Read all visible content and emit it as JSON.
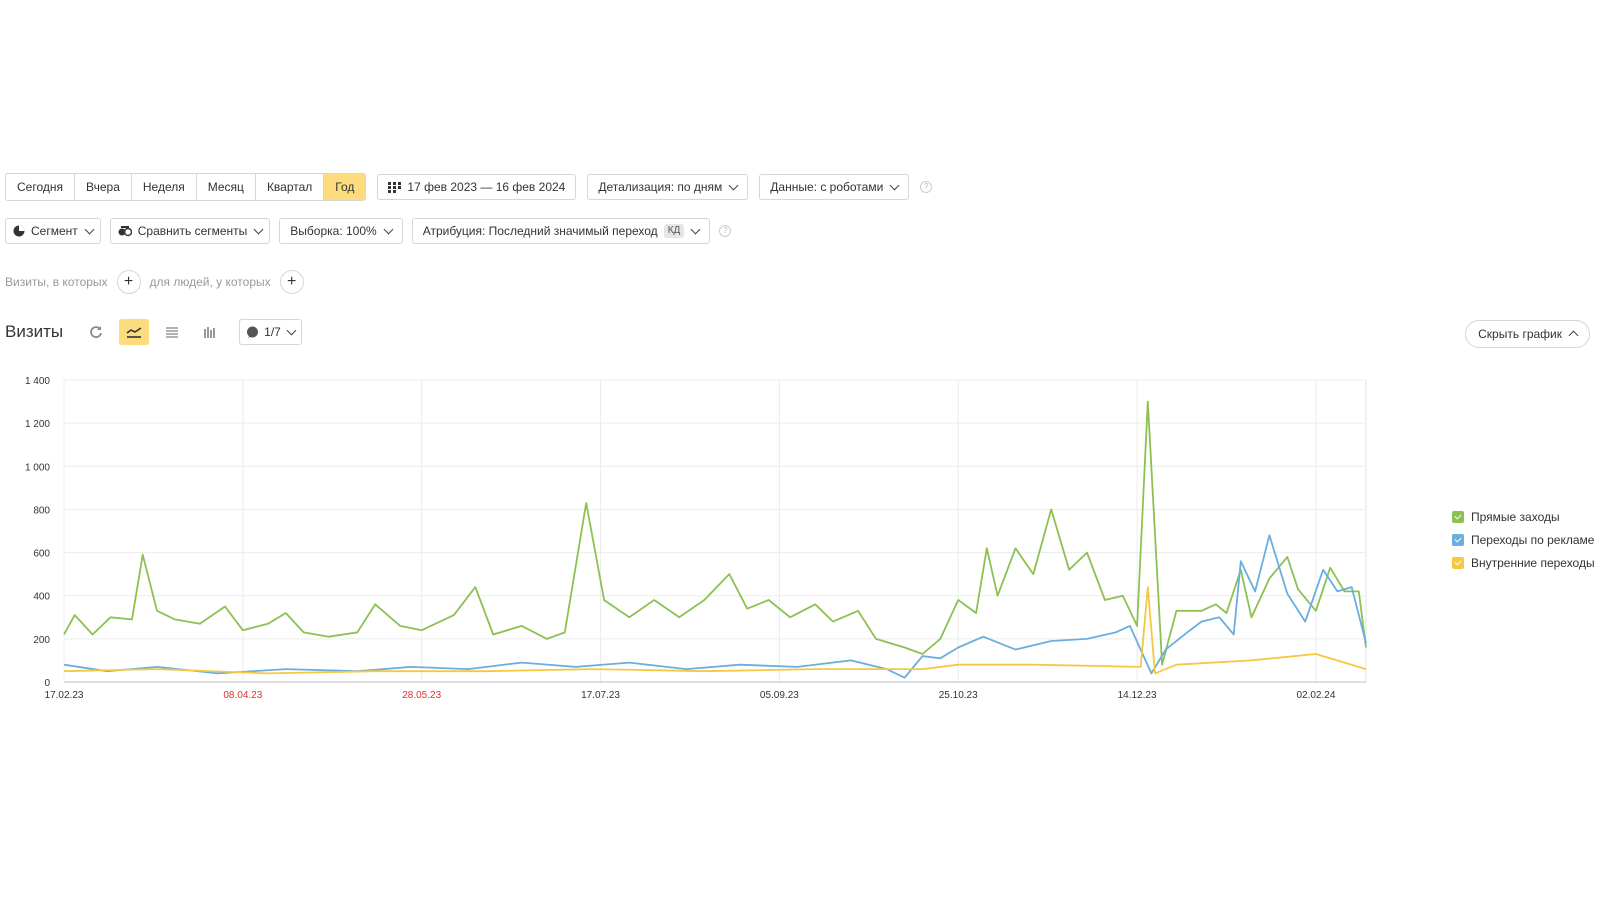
{
  "period_tabs": [
    "Сегодня",
    "Вчера",
    "Неделя",
    "Месяц",
    "Квартал",
    "Год"
  ],
  "active_period": "Год",
  "date_range": "17 фев 2023 — 16 фев 2024",
  "detail_label": "Детализация: по дням",
  "data_label": "Данные: с роботами",
  "segment_label": "Сегмент",
  "compare_label": "Сравнить сегменты",
  "sample_label": "Выборка: 100%",
  "attribution_label": "Атрибуция: Последний значимый переход",
  "attribution_tag": "КД",
  "visits_filter_text": "Визиты, в которых",
  "people_filter_text": "для людей, у которых",
  "report_title": "Визиты",
  "annotations_label": "1/7",
  "hide_chart_label": "Скрыть график",
  "colors": {
    "green": "#8cc152",
    "blue": "#6aaee0",
    "yellow": "#f5c842",
    "accent": "#fcdc7c",
    "red_date": "#d9342b"
  },
  "chart_data": {
    "type": "line",
    "ylim": [
      0,
      1400
    ],
    "y_ticks": [
      0,
      200,
      400,
      600,
      800,
      1000,
      1200,
      1400
    ],
    "y_tick_labels": [
      "0",
      "200",
      "400",
      "600",
      "800",
      "1 000",
      "1 200",
      "1 400"
    ],
    "x_range": [
      "2023-02-17",
      "2024-02-16"
    ],
    "x_ticks": [
      {
        "date": "2023-02-17",
        "label": "17.02.23",
        "red": false
      },
      {
        "date": "2023-04-08",
        "label": "08.04.23",
        "red": true
      },
      {
        "date": "2023-05-28",
        "label": "28.05.23",
        "red": true
      },
      {
        "date": "2023-07-17",
        "label": "17.07.23",
        "red": false
      },
      {
        "date": "2023-09-05",
        "label": "05.09.23",
        "red": false
      },
      {
        "date": "2023-10-25",
        "label": "25.10.23",
        "red": false
      },
      {
        "date": "2023-12-14",
        "label": "14.12.23",
        "red": false
      },
      {
        "date": "2024-02-02",
        "label": "02.02.24",
        "red": false
      }
    ],
    "series": [
      {
        "name": "Прямые заходы",
        "color": "#8cc152",
        "points": [
          [
            "2023-02-17",
            220
          ],
          [
            "2023-02-20",
            310
          ],
          [
            "2023-02-25",
            220
          ],
          [
            "2023-03-02",
            300
          ],
          [
            "2023-03-08",
            290
          ],
          [
            "2023-03-11",
            590
          ],
          [
            "2023-03-15",
            330
          ],
          [
            "2023-03-20",
            290
          ],
          [
            "2023-03-27",
            270
          ],
          [
            "2023-04-03",
            350
          ],
          [
            "2023-04-08",
            240
          ],
          [
            "2023-04-15",
            270
          ],
          [
            "2023-04-20",
            320
          ],
          [
            "2023-04-25",
            230
          ],
          [
            "2023-05-02",
            210
          ],
          [
            "2023-05-10",
            230
          ],
          [
            "2023-05-15",
            360
          ],
          [
            "2023-05-22",
            260
          ],
          [
            "2023-05-28",
            240
          ],
          [
            "2023-06-06",
            310
          ],
          [
            "2023-06-12",
            440
          ],
          [
            "2023-06-17",
            220
          ],
          [
            "2023-06-25",
            260
          ],
          [
            "2023-07-02",
            200
          ],
          [
            "2023-07-07",
            230
          ],
          [
            "2023-07-13",
            830
          ],
          [
            "2023-07-18",
            380
          ],
          [
            "2023-07-25",
            300
          ],
          [
            "2023-08-01",
            380
          ],
          [
            "2023-08-08",
            300
          ],
          [
            "2023-08-15",
            380
          ],
          [
            "2023-08-22",
            500
          ],
          [
            "2023-08-27",
            340
          ],
          [
            "2023-09-02",
            380
          ],
          [
            "2023-09-08",
            300
          ],
          [
            "2023-09-15",
            360
          ],
          [
            "2023-09-20",
            280
          ],
          [
            "2023-09-27",
            330
          ],
          [
            "2023-10-02",
            200
          ],
          [
            "2023-10-10",
            160
          ],
          [
            "2023-10-15",
            130
          ],
          [
            "2023-10-20",
            200
          ],
          [
            "2023-10-25",
            380
          ],
          [
            "2023-10-30",
            320
          ],
          [
            "2023-11-02",
            620
          ],
          [
            "2023-11-05",
            400
          ],
          [
            "2023-11-10",
            620
          ],
          [
            "2023-11-15",
            500
          ],
          [
            "2023-11-20",
            800
          ],
          [
            "2023-11-25",
            520
          ],
          [
            "2023-11-30",
            600
          ],
          [
            "2023-12-05",
            380
          ],
          [
            "2023-12-10",
            400
          ],
          [
            "2023-12-14",
            260
          ],
          [
            "2023-12-17",
            1300
          ],
          [
            "2023-12-21",
            80
          ],
          [
            "2023-12-25",
            330
          ],
          [
            "2024-01-01",
            330
          ],
          [
            "2024-01-05",
            360
          ],
          [
            "2024-01-08",
            320
          ],
          [
            "2024-01-12",
            520
          ],
          [
            "2024-01-15",
            300
          ],
          [
            "2024-01-20",
            480
          ],
          [
            "2024-01-25",
            580
          ],
          [
            "2024-01-28",
            430
          ],
          [
            "2024-02-02",
            330
          ],
          [
            "2024-02-06",
            530
          ],
          [
            "2024-02-10",
            420
          ],
          [
            "2024-02-14",
            420
          ],
          [
            "2024-02-16",
            160
          ]
        ]
      },
      {
        "name": "Переходы по рекламе",
        "color": "#6aaee0",
        "points": [
          [
            "2023-02-17",
            80
          ],
          [
            "2023-03-01",
            50
          ],
          [
            "2023-03-15",
            70
          ],
          [
            "2023-04-01",
            40
          ],
          [
            "2023-04-20",
            60
          ],
          [
            "2023-05-10",
            50
          ],
          [
            "2023-05-25",
            70
          ],
          [
            "2023-06-10",
            60
          ],
          [
            "2023-06-25",
            90
          ],
          [
            "2023-07-10",
            70
          ],
          [
            "2023-07-25",
            90
          ],
          [
            "2023-08-10",
            60
          ],
          [
            "2023-08-25",
            80
          ],
          [
            "2023-09-10",
            70
          ],
          [
            "2023-09-25",
            100
          ],
          [
            "2023-10-05",
            60
          ],
          [
            "2023-10-10",
            20
          ],
          [
            "2023-10-15",
            120
          ],
          [
            "2023-10-20",
            110
          ],
          [
            "2023-10-25",
            160
          ],
          [
            "2023-11-01",
            210
          ],
          [
            "2023-11-10",
            150
          ],
          [
            "2023-11-20",
            190
          ],
          [
            "2023-11-30",
            200
          ],
          [
            "2023-12-08",
            230
          ],
          [
            "2023-12-12",
            260
          ],
          [
            "2023-12-18",
            40
          ],
          [
            "2023-12-22",
            150
          ],
          [
            "2023-12-28",
            230
          ],
          [
            "2024-01-01",
            280
          ],
          [
            "2024-01-06",
            300
          ],
          [
            "2024-01-10",
            220
          ],
          [
            "2024-01-12",
            560
          ],
          [
            "2024-01-16",
            420
          ],
          [
            "2024-01-20",
            680
          ],
          [
            "2024-01-25",
            410
          ],
          [
            "2024-01-30",
            280
          ],
          [
            "2024-02-04",
            520
          ],
          [
            "2024-02-08",
            420
          ],
          [
            "2024-02-12",
            440
          ],
          [
            "2024-02-16",
            180
          ]
        ]
      },
      {
        "name": "Внутренние переходы",
        "color": "#f5c842",
        "points": [
          [
            "2023-02-17",
            50
          ],
          [
            "2023-03-15",
            60
          ],
          [
            "2023-04-15",
            40
          ],
          [
            "2023-05-15",
            50
          ],
          [
            "2023-06-15",
            50
          ],
          [
            "2023-07-15",
            60
          ],
          [
            "2023-08-15",
            50
          ],
          [
            "2023-09-15",
            60
          ],
          [
            "2023-10-15",
            60
          ],
          [
            "2023-10-25",
            80
          ],
          [
            "2023-11-15",
            80
          ],
          [
            "2023-12-15",
            70
          ],
          [
            "2023-12-17",
            440
          ],
          [
            "2023-12-19",
            40
          ],
          [
            "2023-12-25",
            80
          ],
          [
            "2024-01-15",
            100
          ],
          [
            "2024-02-02",
            130
          ],
          [
            "2024-02-16",
            60
          ]
        ]
      }
    ],
    "grid": true,
    "legend": "right"
  }
}
